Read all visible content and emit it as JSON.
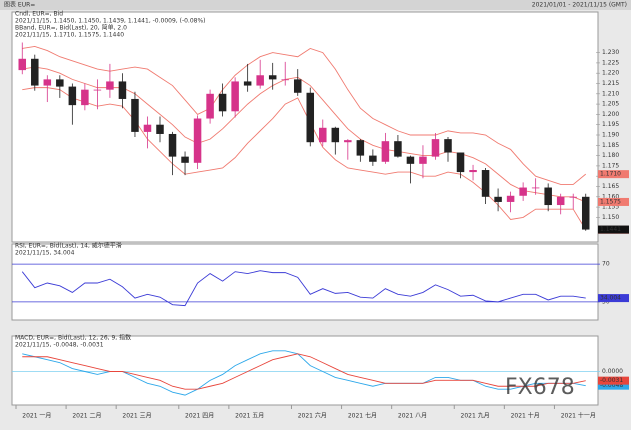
{
  "header": {
    "left": "图表 EUR=",
    "right": "2021/01/01 - 2021/11/15 (GMT)"
  },
  "watermark": "FX678",
  "chart_data": [
    {
      "type": "candlestick",
      "title": "Cndl, EUR=, Bid",
      "subtitle": "2021/11/15, 1.1450, 1.1450, 1.1439, 1.1441, -0.0009, (-0.08%)",
      "categories": [
        "2021 一月",
        null,
        null,
        null,
        "2021 二月",
        null,
        null,
        null,
        "2021 三月",
        null,
        null,
        null,
        null,
        "2021 四月",
        null,
        null,
        null,
        "2021 五月",
        null,
        null,
        null,
        null,
        "2021 六月",
        null,
        null,
        null,
        "2021 七月",
        null,
        null,
        null,
        "2021 八月",
        null,
        null,
        null,
        null,
        "2021 九月",
        null,
        null,
        null,
        "2021 十月",
        null,
        null,
        null,
        "2021 十一月",
        null,
        null
      ],
      "open": [
        1.2215,
        1.227,
        1.214,
        1.217,
        1.2135,
        1.2045,
        1.212,
        1.212,
        1.216,
        1.2075,
        1.1915,
        1.195,
        1.1905,
        1.1795,
        1.1765,
        1.198,
        1.21,
        1.2015,
        1.216,
        1.214,
        1.219,
        1.217,
        1.217,
        1.2105,
        1.1865,
        1.1935,
        1.1865,
        1.1875,
        1.18,
        1.177,
        1.187,
        1.1795,
        1.176,
        1.1795,
        1.188,
        1.1815,
        1.172,
        1.173,
        1.16,
        1.1575,
        1.1605,
        1.1645,
        1.1645,
        1.156,
        1.16,
        1.16
      ],
      "high": [
        1.2349,
        1.229,
        1.219,
        1.219,
        1.215,
        1.215,
        1.217,
        1.2245,
        1.22,
        1.211,
        1.199,
        1.199,
        1.1915,
        1.182,
        1.1995,
        1.212,
        1.215,
        1.218,
        1.2245,
        1.2265,
        1.225,
        1.2255,
        1.222,
        1.213,
        1.1975,
        1.194,
        1.188,
        1.188,
        1.183,
        1.191,
        1.19,
        1.18,
        1.185,
        1.191,
        1.189,
        1.1815,
        1.1755,
        1.174,
        1.164,
        1.1625,
        1.167,
        1.169,
        1.1665,
        1.1615,
        1.1615,
        1.1615
      ],
      "low": [
        1.2195,
        1.2115,
        1.206,
        1.208,
        1.195,
        1.202,
        1.2025,
        1.208,
        1.203,
        1.189,
        1.1835,
        1.1865,
        1.1705,
        1.1705,
        1.1735,
        1.1955,
        1.199,
        1.1985,
        1.211,
        1.2125,
        1.212,
        1.214,
        1.209,
        1.1845,
        1.1845,
        1.1805,
        1.178,
        1.177,
        1.175,
        1.176,
        1.179,
        1.1665,
        1.169,
        1.178,
        1.177,
        1.169,
        1.168,
        1.1565,
        1.153,
        1.1525,
        1.158,
        1.161,
        1.153,
        1.1515,
        1.154,
        1.1435
      ],
      "close": [
        1.227,
        1.214,
        1.217,
        1.2135,
        1.2045,
        1.212,
        1.212,
        1.216,
        1.2075,
        1.1915,
        1.195,
        1.1905,
        1.1795,
        1.1765,
        1.198,
        1.21,
        1.2015,
        1.216,
        1.214,
        1.219,
        1.217,
        1.217,
        1.2105,
        1.1865,
        1.1935,
        1.1865,
        1.1875,
        1.18,
        1.177,
        1.187,
        1.1795,
        1.176,
        1.1795,
        1.188,
        1.1815,
        1.172,
        1.173,
        1.16,
        1.1575,
        1.1605,
        1.1645,
        1.1645,
        1.156,
        1.16,
        1.16,
        1.1441
      ],
      "close_label": "1.1441",
      "up_color": "#d6338a",
      "down_color": "#222222",
      "overlay": {
        "title": "BBand, EUR=, Bid(Last), 20, 简单, 2.0",
        "subtitle": "2021/11/15, 1.1710, 1.1575, 1.1440",
        "color": "#e8463c",
        "series": [
          {
            "color": "#f07a70",
            "last_label": "1.1710",
            "values": [
              1.232,
              1.233,
              1.231,
              1.228,
              1.226,
              1.224,
              1.222,
              1.221,
              1.222,
              1.223,
              1.222,
              1.218,
              1.214,
              1.207,
              1.2,
              1.203,
              1.212,
              1.219,
              1.224,
              1.228,
              1.23,
              1.229,
              1.228,
              1.232,
              1.23,
              1.222,
              1.212,
              1.203,
              1.198,
              1.195,
              1.192,
              1.19,
              1.19,
              1.19,
              1.192,
              1.191,
              1.191,
              1.19,
              1.186,
              1.183,
              1.176,
              1.17,
              1.168,
              1.166,
              1.166,
              1.171
            ]
          },
          {
            "color": "#f07a70",
            "last_label": "1.1575",
            "values": [
              1.222,
              1.223,
              1.222,
              1.22,
              1.217,
              1.215,
              1.213,
              1.213,
              1.213,
              1.21,
              1.205,
              1.2,
              1.195,
              1.189,
              1.186,
              1.188,
              1.193,
              1.199,
              1.205,
              1.21,
              1.214,
              1.217,
              1.218,
              1.214,
              1.207,
              1.2,
              1.193,
              1.188,
              1.185,
              1.183,
              1.182,
              1.181,
              1.18,
              1.18,
              1.182,
              1.181,
              1.179,
              1.176,
              1.171,
              1.166,
              1.163,
              1.162,
              1.161,
              1.16,
              1.16,
              1.1575
            ]
          },
          {
            "color": "#f07a70",
            "last_label": "1.1440",
            "values": [
              1.212,
              1.213,
              1.213,
              1.212,
              1.208,
              1.206,
              1.204,
              1.205,
              1.204,
              1.197,
              1.188,
              1.182,
              1.176,
              1.171,
              1.172,
              1.173,
              1.174,
              1.179,
              1.186,
              1.192,
              1.198,
              1.205,
              1.208,
              1.196,
              1.184,
              1.178,
              1.174,
              1.173,
              1.172,
              1.171,
              1.172,
              1.172,
              1.17,
              1.17,
              1.172,
              1.171,
              1.167,
              1.162,
              1.156,
              1.149,
              1.15,
              1.154,
              1.154,
              1.154,
              1.154,
              1.144
            ]
          }
        ]
      },
      "ylim": [
        1.14,
        1.24
      ],
      "yticks": [
        {
          "value": 1.15,
          "label": "1.150"
        },
        {
          "value": 1.155,
          "label": "1.155"
        },
        {
          "value": 1.16,
          "label": "1.160"
        },
        {
          "value": 1.165,
          "label": "1.165"
        },
        {
          "value": 1.17,
          "label": "1.170"
        },
        {
          "value": 1.175,
          "label": "1.175"
        },
        {
          "value": 1.18,
          "label": "1.180"
        },
        {
          "value": 1.185,
          "label": "1.185"
        },
        {
          "value": 1.19,
          "label": "1.190"
        },
        {
          "value": 1.195,
          "label": "1.195"
        },
        {
          "value": 1.2,
          "label": "1.200"
        },
        {
          "value": 1.205,
          "label": "1.205"
        },
        {
          "value": 1.21,
          "label": "1.210"
        },
        {
          "value": 1.215,
          "label": "1.215"
        },
        {
          "value": 1.22,
          "label": "1.220"
        },
        {
          "value": 1.225,
          "label": "1.225"
        },
        {
          "value": 1.23,
          "label": "1.230"
        }
      ]
    },
    {
      "type": "line",
      "title": "RSI, EUR=, Bid(Last), 14, 威尔德平滑",
      "subtitle": "2021/11/15, 34.004",
      "series": [
        {
          "color": "#3b3bd6",
          "last_label": "34.004",
          "values": [
            62,
            45,
            50,
            47,
            40,
            50,
            50,
            54,
            46,
            34,
            38,
            35,
            27,
            26,
            50,
            60,
            52,
            62,
            60,
            63,
            61,
            61,
            56,
            38,
            44,
            39,
            40,
            35,
            34,
            44,
            38,
            36,
            40,
            48,
            43,
            36,
            37,
            31,
            30,
            34,
            38,
            38,
            32,
            36,
            36,
            34.004
          ]
        }
      ],
      "ylim": [
        15,
        85
      ],
      "yticks": [
        30,
        70
      ],
      "level_color": "#3b3bd6"
    },
    {
      "type": "line",
      "title": "MACD, EUR=, Bid(Last), 12, 26, 9, 指数",
      "subtitle": "2021/11/15, -0.0048, -0.0031",
      "series": [
        {
          "color": "#2ea8ea",
          "last_label": "-0.0048",
          "values": [
            0.006,
            0.005,
            0.004,
            0.003,
            0.001,
            0.0,
            -0.001,
            0.0,
            0.0,
            -0.002,
            -0.004,
            -0.005,
            -0.007,
            -0.008,
            -0.006,
            -0.003,
            -0.001,
            0.002,
            0.004,
            0.006,
            0.007,
            0.007,
            0.006,
            0.002,
            0.0,
            -0.002,
            -0.003,
            -0.004,
            -0.005,
            -0.004,
            -0.004,
            -0.004,
            -0.004,
            -0.002,
            -0.002,
            -0.003,
            -0.003,
            -0.005,
            -0.006,
            -0.006,
            -0.005,
            -0.004,
            -0.004,
            -0.004,
            -0.004,
            -0.0048
          ]
        },
        {
          "color": "#e8463c",
          "last_label": "-0.0031",
          "values": [
            0.005,
            0.005,
            0.005,
            0.004,
            0.003,
            0.002,
            0.001,
            0.0,
            0.0,
            -0.001,
            -0.002,
            -0.003,
            -0.005,
            -0.006,
            -0.006,
            -0.005,
            -0.004,
            -0.002,
            0.0,
            0.002,
            0.004,
            0.005,
            0.006,
            0.005,
            0.003,
            0.001,
            -0.001,
            -0.002,
            -0.003,
            -0.004,
            -0.004,
            -0.004,
            -0.004,
            -0.003,
            -0.003,
            -0.003,
            -0.003,
            -0.004,
            -0.005,
            -0.005,
            -0.005,
            -0.005,
            -0.004,
            -0.004,
            -0.004,
            -0.0031
          ]
        }
      ],
      "ylim": [
        -0.01,
        0.01
      ],
      "yticks": [
        {
          "value": 0,
          "label": "0.0000"
        }
      ],
      "level_color": "#7fd0f0"
    }
  ]
}
